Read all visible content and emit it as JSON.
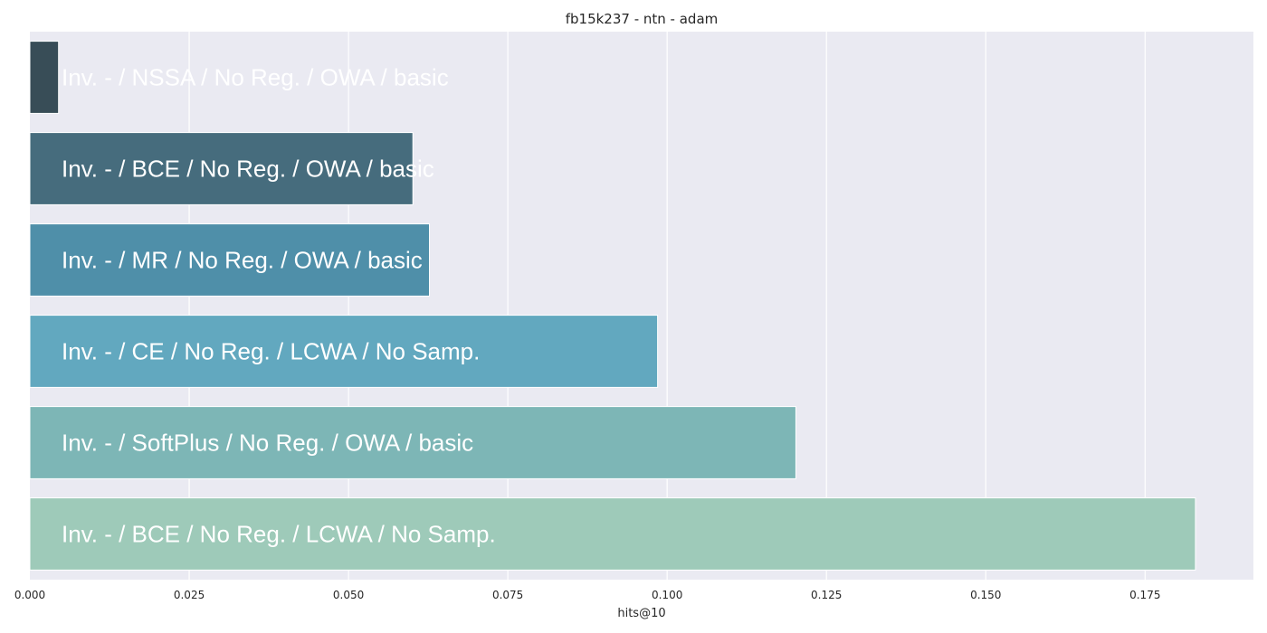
{
  "chart_data": {
    "type": "bar",
    "orientation": "horizontal",
    "title": "fb15k237 - ntn - adam",
    "xlabel": "hits@10",
    "ylabel": "",
    "xlim": [
      0.0,
      0.192
    ],
    "xticks": [
      0.0,
      0.025,
      0.05,
      0.075,
      0.1,
      0.125,
      0.15,
      0.175
    ],
    "xtick_labels": [
      "0.000",
      "0.025",
      "0.050",
      "0.075",
      "0.100",
      "0.125",
      "0.150",
      "0.175"
    ],
    "grid": true,
    "categories": [
      "Inv. - / NSSA / No Reg. / OWA / basic",
      "Inv. - / BCE / No Reg. / OWA / basic",
      "Inv. - / MR / No Reg. / OWA / basic",
      "Inv. - / CE / No Reg. / LCWA / No Samp.",
      "Inv. - / SoftPlus / No Reg. / OWA / basic",
      "Inv. - / BCE / No Reg. / LCWA / No Samp."
    ],
    "values": [
      0.0045,
      0.0601,
      0.0627,
      0.0985,
      0.1202,
      0.1829
    ],
    "colors": [
      "#384d57",
      "#466c7d",
      "#4f8fa9",
      "#62a8bf",
      "#7db6b6",
      "#9ecab9"
    ]
  },
  "style": {
    "plot_background": "#eaeaf2",
    "grid_color": "#ffffff",
    "text_color": "#262626",
    "bar_label_color": "#ffffff"
  }
}
